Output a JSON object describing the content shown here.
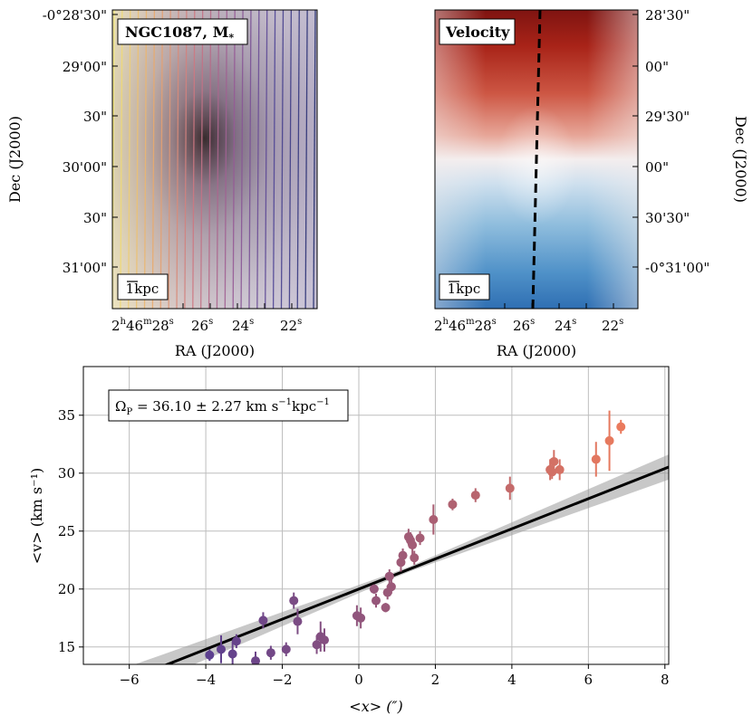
{
  "chart_data": [
    {
      "type": "image",
      "panel": "stellar-mass-map",
      "title": "NGC1087, M",
      "title_subscript": "*",
      "scale_bar_label": "1kpc",
      "xlabel": "RA (J2000)",
      "ylabel": "Dec (J2000)",
      "x_ticks": [
        {
          "main": "2",
          "sup1": "h",
          "mid": "46",
          "sup2": "m",
          "end": "28",
          "sup3": "s"
        },
        {
          "main": "26",
          "sup1": "s"
        },
        {
          "main": "24",
          "sup1": "s"
        },
        {
          "main": "22",
          "sup1": "s"
        }
      ],
      "y_ticks": [
        "-0°28'30\"",
        "29'00\"",
        "30\"",
        "30'00\"",
        "30\"",
        "31'00\""
      ],
      "slit_count": 26
    },
    {
      "type": "image",
      "panel": "velocity-map",
      "title": "Velocity",
      "scale_bar_label": "1kpc",
      "xlabel": "RA (J2000)",
      "ylabel": "Dec (J2000)",
      "x_ticks": [
        {
          "main": "2",
          "sup1": "h",
          "mid": "46",
          "sup2": "m",
          "end": "28",
          "sup3": "s"
        },
        {
          "main": "26",
          "sup1": "s"
        },
        {
          "main": "24",
          "sup1": "s"
        },
        {
          "main": "22",
          "sup1": "s"
        }
      ],
      "y_ticks": [
        "28'30\"",
        "00\"",
        "29'30\"",
        "00\"",
        "30'30\"",
        "-0°31'00\""
      ]
    },
    {
      "type": "scatter",
      "panel": "pattern-speed-fit",
      "annotation": {
        "prefix": "Ω",
        "sub": "P",
        "eq": " = 36.10 ± 2.27 km s",
        "sup": "−1",
        "tail": "kpc",
        "sup2": "−1"
      },
      "xlabel": "<x> (″)",
      "ylabel": "<v> (km s⁻¹)",
      "xlim": [
        -7.2,
        8.1
      ],
      "ylim": [
        13.5,
        39.2
      ],
      "x_ticks": [
        -6,
        -4,
        -2,
        0,
        2,
        4,
        6,
        8
      ],
      "y_ticks": [
        15,
        20,
        25,
        30,
        35
      ],
      "grid": true,
      "fit": {
        "slope": 1.3,
        "intercept": 20.0,
        "band_at_edges": 0.9
      },
      "points": [
        {
          "x": -3.9,
          "y": 14.3,
          "err": 0.5
        },
        {
          "x": -3.6,
          "y": 14.8,
          "err": 1.2
        },
        {
          "x": -3.3,
          "y": 14.4,
          "err": 1.1
        },
        {
          "x": -3.2,
          "y": 15.5,
          "err": 0.6
        },
        {
          "x": -2.7,
          "y": 13.8,
          "err": 0.8
        },
        {
          "x": -2.5,
          "y": 17.3,
          "err": 0.7
        },
        {
          "x": -2.3,
          "y": 14.5,
          "err": 0.6
        },
        {
          "x": -1.9,
          "y": 14.8,
          "err": 0.6
        },
        {
          "x": -1.7,
          "y": 19.0,
          "err": 0.7
        },
        {
          "x": -1.6,
          "y": 17.2,
          "err": 1.1
        },
        {
          "x": -1.1,
          "y": 15.2,
          "err": 0.8
        },
        {
          "x": -1.0,
          "y": 15.9,
          "err": 1.3
        },
        {
          "x": -0.9,
          "y": 15.6,
          "err": 1.0
        },
        {
          "x": -0.05,
          "y": 17.7,
          "err": 0.9
        },
        {
          "x": 0.05,
          "y": 17.5,
          "err": 0.9
        },
        {
          "x": 0.4,
          "y": 20.0,
          "err": 0.4
        },
        {
          "x": 0.45,
          "y": 19.0,
          "err": 0.6
        },
        {
          "x": 0.7,
          "y": 18.4,
          "err": 0.4
        },
        {
          "x": 0.75,
          "y": 19.7,
          "err": 0.6
        },
        {
          "x": 0.8,
          "y": 21.1,
          "err": 0.6
        },
        {
          "x": 0.85,
          "y": 20.2,
          "err": 0.6
        },
        {
          "x": 1.1,
          "y": 22.3,
          "err": 0.8
        },
        {
          "x": 1.15,
          "y": 22.9,
          "err": 0.6
        },
        {
          "x": 1.3,
          "y": 24.5,
          "err": 0.7
        },
        {
          "x": 1.35,
          "y": 24.2,
          "err": 0.7
        },
        {
          "x": 1.4,
          "y": 23.8,
          "err": 0.8
        },
        {
          "x": 1.45,
          "y": 22.7,
          "err": 0.6
        },
        {
          "x": 1.6,
          "y": 24.4,
          "err": 0.6
        },
        {
          "x": 1.95,
          "y": 26.0,
          "err": 1.3
        },
        {
          "x": 2.45,
          "y": 27.3,
          "err": 0.5
        },
        {
          "x": 3.05,
          "y": 28.1,
          "err": 0.6
        },
        {
          "x": 3.95,
          "y": 28.7,
          "err": 1.0
        },
        {
          "x": 5.0,
          "y": 30.3,
          "err": 0.9
        },
        {
          "x": 5.05,
          "y": 30.1,
          "err": 0.6
        },
        {
          "x": 5.1,
          "y": 31.0,
          "err": 1.0
        },
        {
          "x": 5.25,
          "y": 30.3,
          "err": 0.9
        },
        {
          "x": 6.2,
          "y": 31.2,
          "err": 1.5
        },
        {
          "x": 6.55,
          "y": 32.8,
          "err": 2.6
        },
        {
          "x": 6.85,
          "y": 34.0,
          "err": 0.6
        }
      ],
      "colors": {
        "start": "#5c3f8f",
        "end": "#ec7b5c"
      }
    }
  ]
}
